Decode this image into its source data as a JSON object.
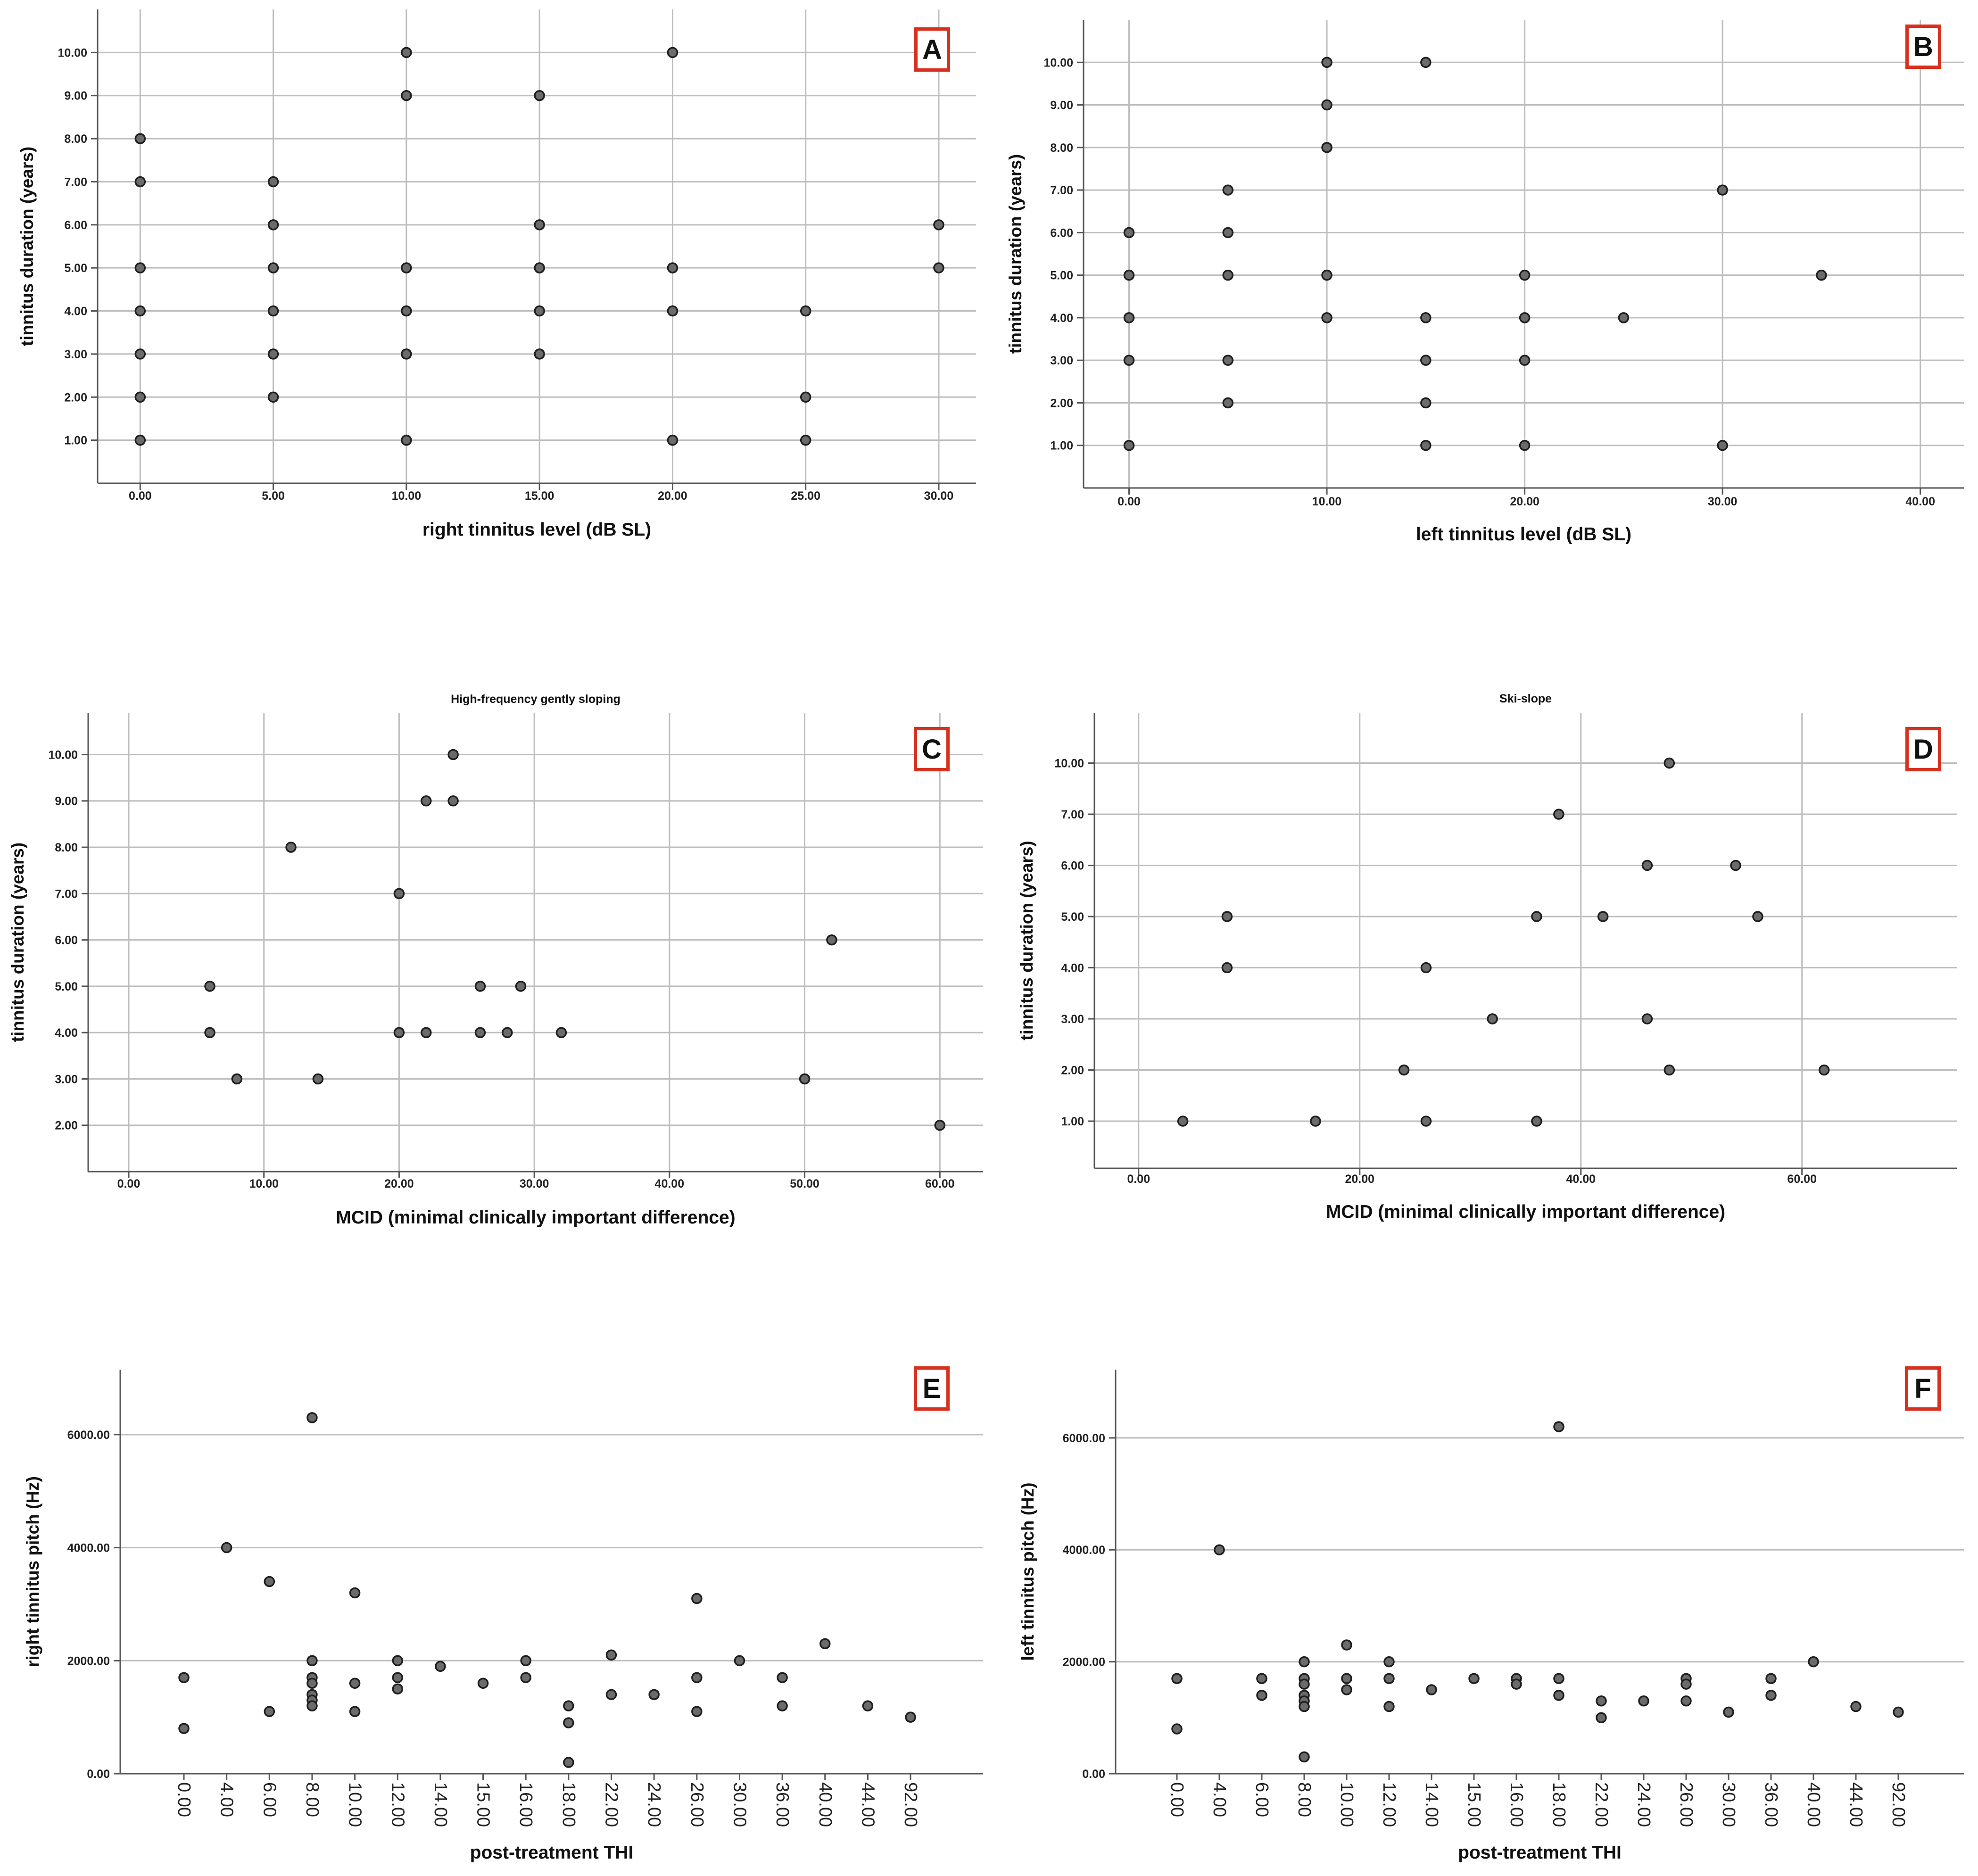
{
  "chart_data": [
    {
      "panel": "A",
      "type": "scatter",
      "title": "",
      "xlabel": "right tinnitus level (dB SL)",
      "ylabel": "tinnitus duration (years)",
      "xlim": [
        -1.6,
        31.4
      ],
      "ylim": [
        0,
        11.0
      ],
      "xticks": [
        0,
        5,
        10,
        15,
        20,
        25,
        30
      ],
      "xtick_labels": [
        "0.00",
        "5.00",
        "10.00",
        "15.00",
        "20.00",
        "25.00",
        "30.00"
      ],
      "yticks": [
        1,
        2,
        3,
        4,
        5,
        6,
        7,
        8,
        9,
        10
      ],
      "ytick_labels": [
        "1.00",
        "2.00",
        "3.00",
        "4.00",
        "5.00",
        "6.00",
        "7.00",
        "8.00",
        "9.00",
        "10.00"
      ],
      "points": [
        [
          0,
          8
        ],
        [
          0,
          7
        ],
        [
          0,
          5
        ],
        [
          0,
          4
        ],
        [
          0,
          3
        ],
        [
          0,
          2
        ],
        [
          0,
          1
        ],
        [
          5,
          7
        ],
        [
          5,
          6
        ],
        [
          5,
          5
        ],
        [
          5,
          4
        ],
        [
          5,
          3
        ],
        [
          5,
          2
        ],
        [
          10,
          10
        ],
        [
          10,
          9
        ],
        [
          10,
          5
        ],
        [
          10,
          4
        ],
        [
          10,
          3
        ],
        [
          10,
          1
        ],
        [
          15,
          9
        ],
        [
          15,
          6
        ],
        [
          15,
          5
        ],
        [
          15,
          4
        ],
        [
          15,
          3
        ],
        [
          20,
          10
        ],
        [
          20,
          5
        ],
        [
          20,
          4
        ],
        [
          20,
          1
        ],
        [
          25,
          4
        ],
        [
          25,
          2
        ],
        [
          25,
          1
        ],
        [
          30,
          6
        ],
        [
          30,
          5
        ]
      ]
    },
    {
      "panel": "B",
      "type": "scatter",
      "title": "",
      "xlabel": "left tinnitus level (dB SL)",
      "ylabel": "tinnitus duration (years)",
      "xlim": [
        -2.3,
        42.2
      ],
      "ylim": [
        0,
        11.0
      ],
      "xticks": [
        0,
        10,
        20,
        30,
        40
      ],
      "xtick_labels": [
        "0.00",
        "10.00",
        "20.00",
        "30.00",
        "40.00"
      ],
      "yticks": [
        1,
        2,
        3,
        4,
        5,
        6,
        7,
        8,
        9,
        10
      ],
      "ytick_labels": [
        "1.00",
        "2.00",
        "3.00",
        "4.00",
        "5.00",
        "6.00",
        "7.00",
        "8.00",
        "9.00",
        "10.00"
      ],
      "points": [
        [
          0,
          6
        ],
        [
          0,
          5
        ],
        [
          0,
          4
        ],
        [
          0,
          3
        ],
        [
          0,
          1
        ],
        [
          5,
          7
        ],
        [
          5,
          6
        ],
        [
          5,
          5
        ],
        [
          5,
          3
        ],
        [
          5,
          2
        ],
        [
          10,
          10
        ],
        [
          10,
          9
        ],
        [
          10,
          8
        ],
        [
          10,
          5
        ],
        [
          10,
          4
        ],
        [
          15,
          10
        ],
        [
          15,
          4
        ],
        [
          15,
          3
        ],
        [
          15,
          2
        ],
        [
          15,
          1
        ],
        [
          20,
          5
        ],
        [
          20,
          4
        ],
        [
          20,
          3
        ],
        [
          20,
          1
        ],
        [
          25,
          4
        ],
        [
          30,
          7
        ],
        [
          30,
          1
        ],
        [
          35,
          5
        ]
      ]
    },
    {
      "panel": "C",
      "type": "scatter",
      "title": "High-frequency gently sloping",
      "xlabel": "MCID (minimal clinically important difference)",
      "ylabel": "tinnitus duration (years)",
      "xlim": [
        -3.0,
        63.2
      ],
      "ylim": [
        1.0,
        10.9
      ],
      "xticks": [
        0,
        10,
        20,
        30,
        40,
        50,
        60
      ],
      "xtick_labels": [
        "0.00",
        "10.00",
        "20.00",
        "30.00",
        "40.00",
        "50.00",
        "60.00"
      ],
      "yticks": [
        2,
        3,
        4,
        5,
        6,
        7,
        8,
        9,
        10
      ],
      "ytick_labels": [
        "2.00",
        "3.00",
        "4.00",
        "5.00",
        "6.00",
        "7.00",
        "8.00",
        "9.00",
        "10.00"
      ],
      "points": [
        [
          6,
          5
        ],
        [
          6,
          4
        ],
        [
          8,
          3
        ],
        [
          12,
          8
        ],
        [
          14,
          3
        ],
        [
          20,
          7
        ],
        [
          20,
          4
        ],
        [
          22,
          9
        ],
        [
          22,
          4
        ],
        [
          24,
          10
        ],
        [
          24,
          9
        ],
        [
          26,
          5
        ],
        [
          26,
          4
        ],
        [
          28,
          4
        ],
        [
          29,
          5
        ],
        [
          32,
          4
        ],
        [
          50,
          3
        ],
        [
          52,
          6
        ],
        [
          60,
          2
        ]
      ]
    },
    {
      "panel": "D",
      "type": "scatter",
      "title": "Ski-slope",
      "xlabel": "MCID (minimal clinically important difference)",
      "ylabel": "tinnitus duration (years)",
      "xlim": [
        -4.0,
        74.0
      ],
      "y_scale": "categorical",
      "xticks": [
        0,
        20,
        40,
        60
      ],
      "xtick_labels": [
        "0.00",
        "20.00",
        "40.00",
        "60.00"
      ],
      "categories": [
        "1.00",
        "2.00",
        "3.00",
        "4.00",
        "5.00",
        "6.00",
        "7.00",
        "10.00"
      ],
      "ytick_labels": [
        "1.00",
        "2.00",
        "3.00",
        "4.00",
        "5.00",
        "6.00",
        "7.00",
        "10.00"
      ],
      "points": [
        [
          4,
          "1.00"
        ],
        [
          8,
          "5.00"
        ],
        [
          8,
          "4.00"
        ],
        [
          16,
          "1.00"
        ],
        [
          24,
          "2.00"
        ],
        [
          26,
          "4.00"
        ],
        [
          26,
          "1.00"
        ],
        [
          32,
          "3.00"
        ],
        [
          36,
          "5.00"
        ],
        [
          36,
          "1.00"
        ],
        [
          38,
          "7.00"
        ],
        [
          42,
          "5.00"
        ],
        [
          46,
          "6.00"
        ],
        [
          46,
          "3.00"
        ],
        [
          48,
          "10.00"
        ],
        [
          48,
          "2.00"
        ],
        [
          54,
          "6.00"
        ],
        [
          56,
          "5.00"
        ],
        [
          62,
          "2.00"
        ]
      ]
    },
    {
      "panel": "E",
      "type": "scatter",
      "title": "",
      "xlabel": "post-treatment THI",
      "ylabel": "right tinnitus pitch (Hz)",
      "x_scale": "categorical",
      "categories": [
        "0.00",
        "4.00",
        "6.00",
        "8.00",
        "10.00",
        "12.00",
        "14.00",
        "15.00",
        "16.00",
        "18.00",
        "22.00",
        "24.00",
        "26.00",
        "30.00",
        "36.00",
        "40.00",
        "44.00",
        "92.00"
      ],
      "xtick_labels": [
        "0.00",
        "4.00",
        "6.00",
        "8.00",
        "10.00",
        "12.00",
        "14.00",
        "15.00",
        "16.00",
        "18.00",
        "22.00",
        "24.00",
        "26.00",
        "30.00",
        "36.00",
        "40.00",
        "44.00",
        "92.00"
      ],
      "ylim": [
        0,
        7150
      ],
      "yticks": [
        0,
        2000,
        4000,
        6000
      ],
      "ytick_labels": [
        "0.00",
        "2000.00",
        "4000.00",
        "6000.00"
      ],
      "points": [
        [
          "0.00",
          1700
        ],
        [
          "0.00",
          800
        ],
        [
          "4.00",
          4000
        ],
        [
          "6.00",
          3400
        ],
        [
          "6.00",
          1100
        ],
        [
          "8.00",
          6300
        ],
        [
          "8.00",
          2000
        ],
        [
          "8.00",
          1700
        ],
        [
          "8.00",
          1600
        ],
        [
          "8.00",
          1400
        ],
        [
          "8.00",
          1300
        ],
        [
          "8.00",
          1200
        ],
        [
          "10.00",
          3200
        ],
        [
          "10.00",
          1600
        ],
        [
          "10.00",
          1100
        ],
        [
          "12.00",
          2000
        ],
        [
          "12.00",
          1700
        ],
        [
          "12.00",
          1500
        ],
        [
          "14.00",
          1900
        ],
        [
          "15.00",
          1600
        ],
        [
          "16.00",
          2000
        ],
        [
          "16.00",
          1700
        ],
        [
          "18.00",
          1200
        ],
        [
          "18.00",
          900
        ],
        [
          "18.00",
          200
        ],
        [
          "22.00",
          2100
        ],
        [
          "22.00",
          1400
        ],
        [
          "24.00",
          1400
        ],
        [
          "26.00",
          3100
        ],
        [
          "26.00",
          1700
        ],
        [
          "26.00",
          1100
        ],
        [
          "30.00",
          2000
        ],
        [
          "36.00",
          1700
        ],
        [
          "36.00",
          1200
        ],
        [
          "40.00",
          2300
        ],
        [
          "44.00",
          1200
        ],
        [
          "92.00",
          1000
        ]
      ]
    },
    {
      "panel": "F",
      "type": "scatter",
      "title": "",
      "xlabel": "post-treatment THI",
      "ylabel": "left tinnitus pitch (Hz)",
      "x_scale": "categorical",
      "categories": [
        "0.00",
        "4.00",
        "6.00",
        "8.00",
        "10.00",
        "12.00",
        "14.00",
        "15.00",
        "16.00",
        "18.00",
        "22.00",
        "24.00",
        "26.00",
        "30.00",
        "36.00",
        "40.00",
        "44.00",
        "92.00"
      ],
      "xtick_labels": [
        "0.00",
        "4.00",
        "6.00",
        "8.00",
        "10.00",
        "12.00",
        "14.00",
        "15.00",
        "16.00",
        "18.00",
        "22.00",
        "24.00",
        "26.00",
        "30.00",
        "36.00",
        "40.00",
        "44.00",
        "92.00"
      ],
      "ylim": [
        0,
        7220
      ],
      "yticks": [
        0,
        2000,
        4000,
        6000
      ],
      "ytick_labels": [
        "0.00",
        "2000.00",
        "4000.00",
        "6000.00"
      ],
      "points": [
        [
          "0.00",
          1700
        ],
        [
          "0.00",
          800
        ],
        [
          "4.00",
          4000
        ],
        [
          "6.00",
          1700
        ],
        [
          "6.00",
          1400
        ],
        [
          "8.00",
          2000
        ],
        [
          "8.00",
          1700
        ],
        [
          "8.00",
          1600
        ],
        [
          "8.00",
          1400
        ],
        [
          "8.00",
          1300
        ],
        [
          "8.00",
          1200
        ],
        [
          "8.00",
          300
        ],
        [
          "10.00",
          2300
        ],
        [
          "10.00",
          1700
        ],
        [
          "10.00",
          1500
        ],
        [
          "12.00",
          2000
        ],
        [
          "12.00",
          1700
        ],
        [
          "12.00",
          1200
        ],
        [
          "14.00",
          1500
        ],
        [
          "15.00",
          1700
        ],
        [
          "16.00",
          1700
        ],
        [
          "16.00",
          1600
        ],
        [
          "18.00",
          6200
        ],
        [
          "18.00",
          1700
        ],
        [
          "18.00",
          1400
        ],
        [
          "22.00",
          1300
        ],
        [
          "22.00",
          1000
        ],
        [
          "24.00",
          1300
        ],
        [
          "26.00",
          1700
        ],
        [
          "26.00",
          1600
        ],
        [
          "26.00",
          1300
        ],
        [
          "30.00",
          1100
        ],
        [
          "36.00",
          1700
        ],
        [
          "36.00",
          1400
        ],
        [
          "40.00",
          2000
        ],
        [
          "44.00",
          1200
        ],
        [
          "92.00",
          1100
        ]
      ]
    }
  ],
  "style": {
    "marker_fill": "#6b6b6b",
    "marker_edge": "#1e1e1e",
    "grid": "#bdbdbd",
    "axis": "#555555",
    "label_border": "#d7301f"
  }
}
